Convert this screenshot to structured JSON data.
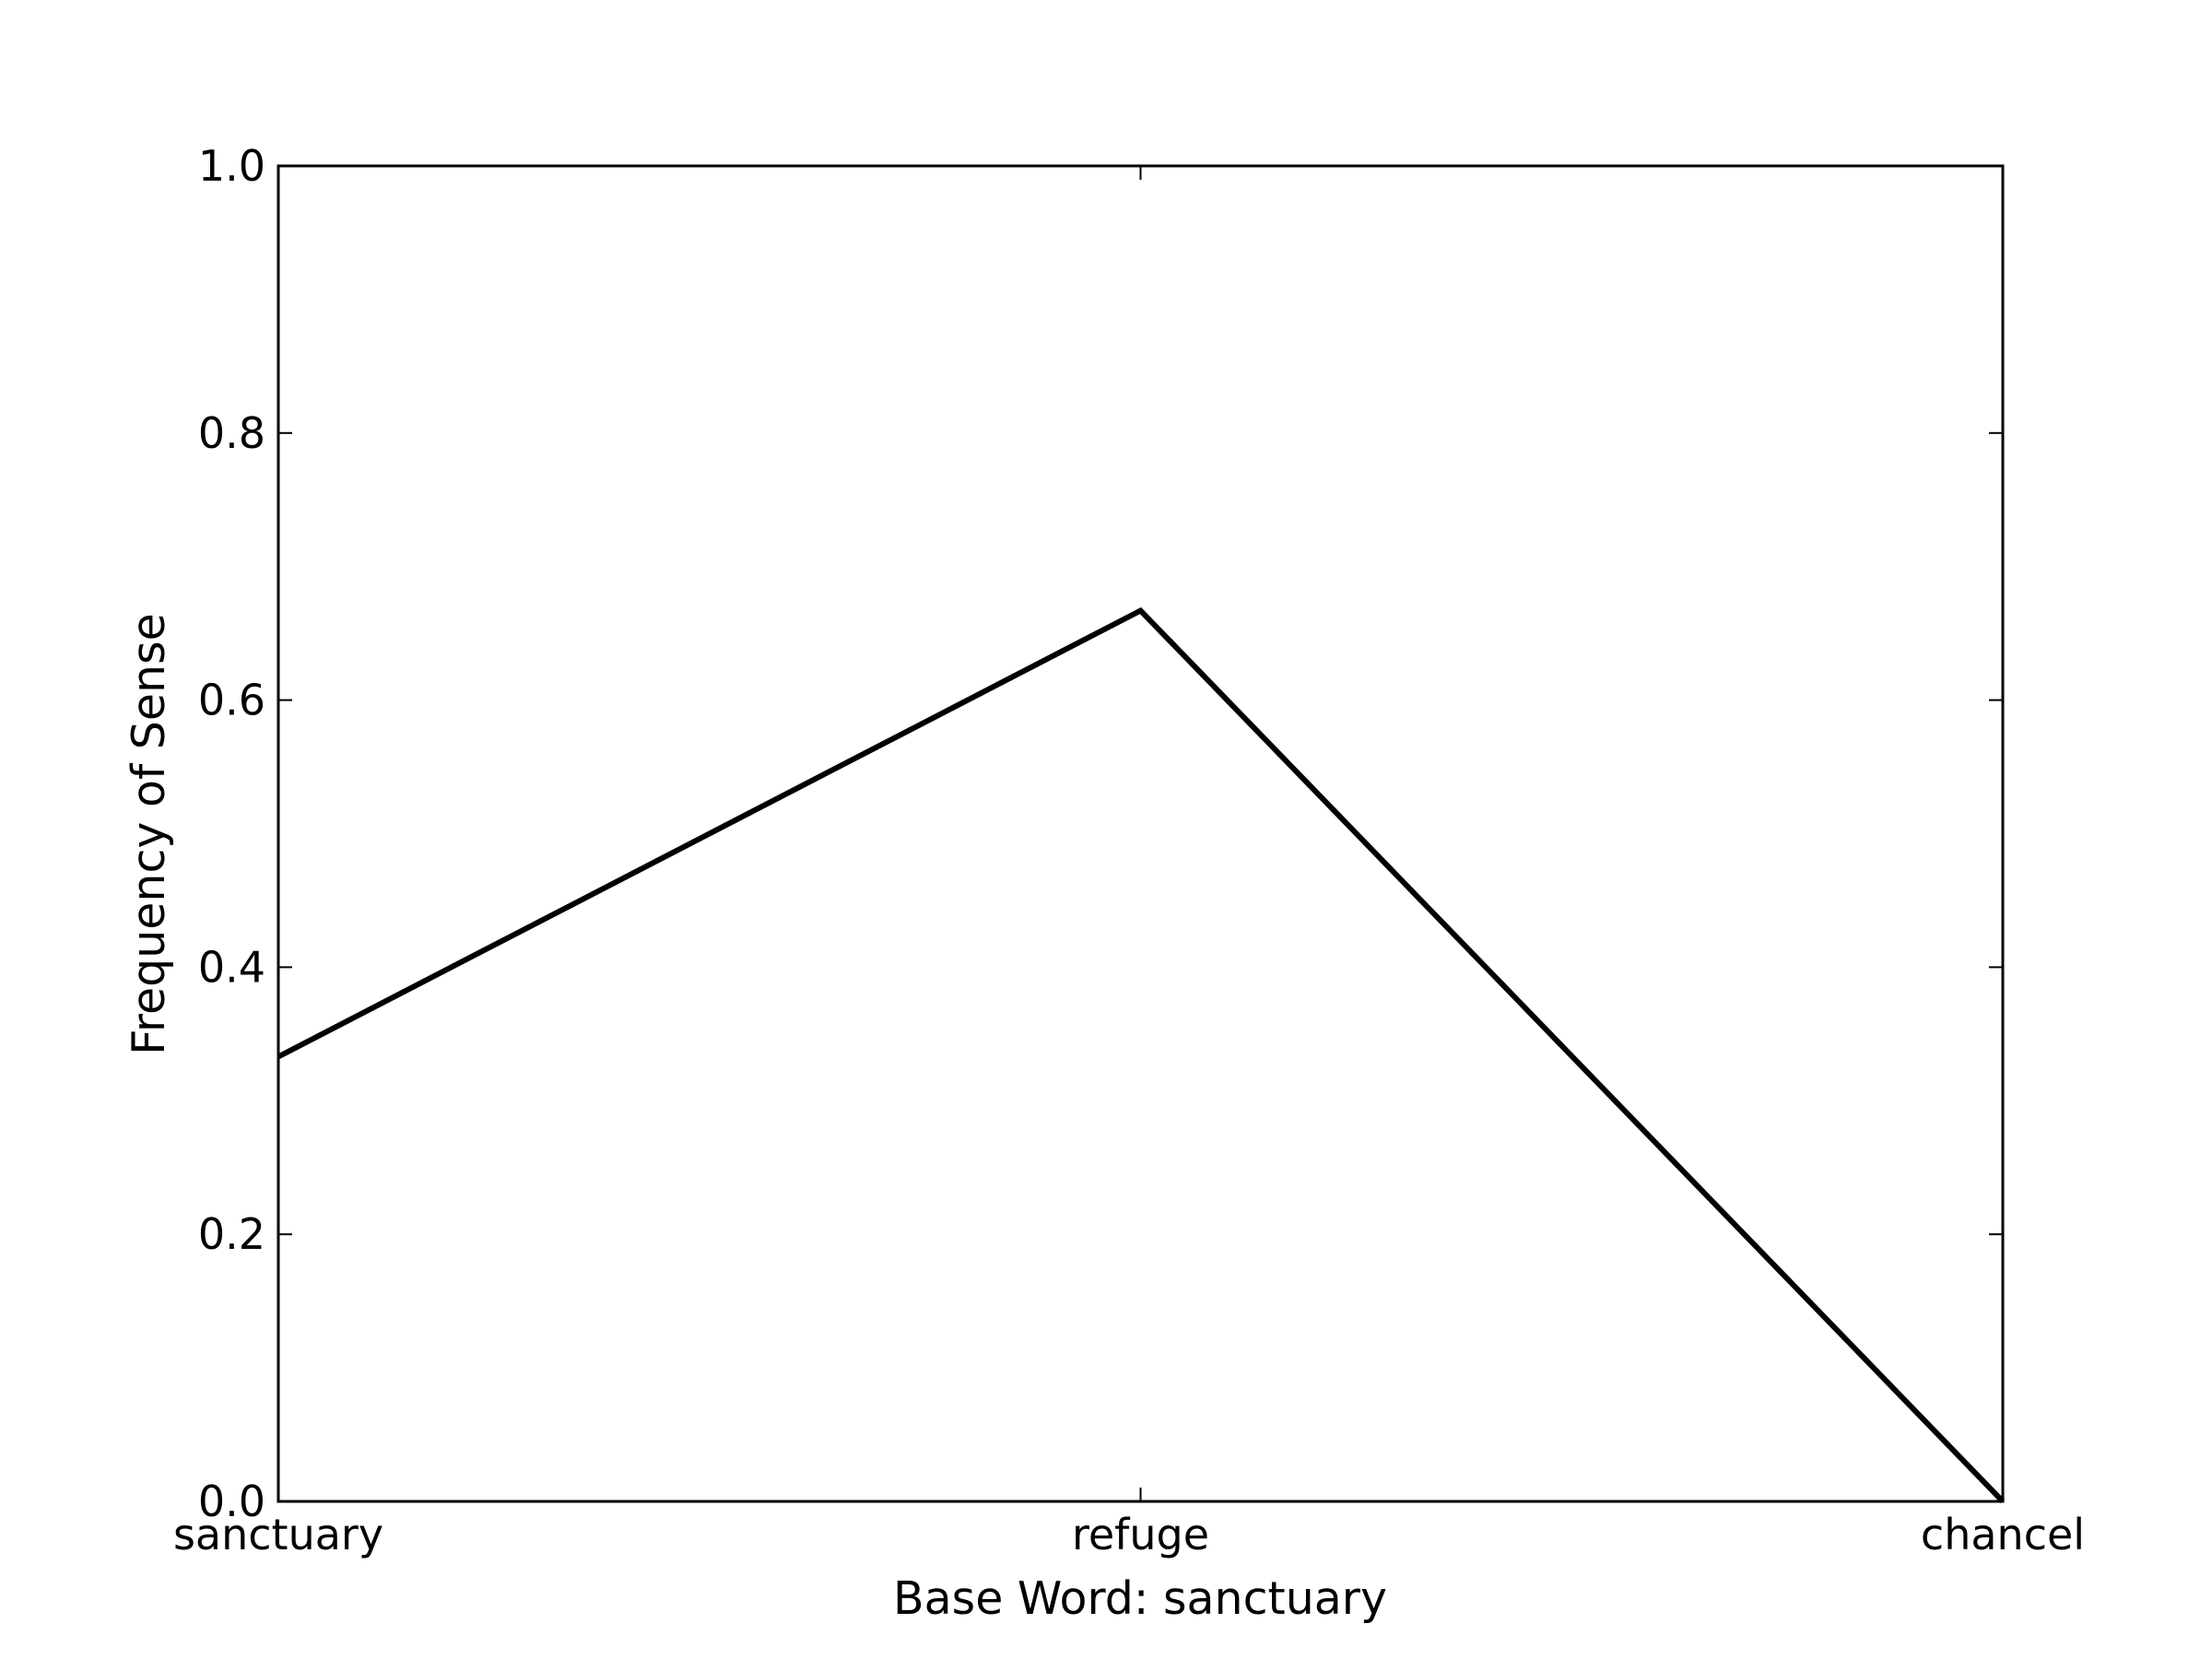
{
  "chart_data": {
    "type": "line",
    "categories": [
      "sanctuary",
      "refuge",
      "chancel"
    ],
    "series": [
      {
        "values": [
          0.333,
          0.667,
          0.0
        ]
      }
    ],
    "xlabel": "Base Word: sanctuary",
    "ylabel": "Frequency of Sense",
    "ylim": [
      0,
      1.0
    ],
    "yticks": [
      "0.0",
      "0.2",
      "0.4",
      "0.6",
      "0.8",
      "1.0"
    ],
    "grid": false,
    "line_color": "#000000"
  }
}
